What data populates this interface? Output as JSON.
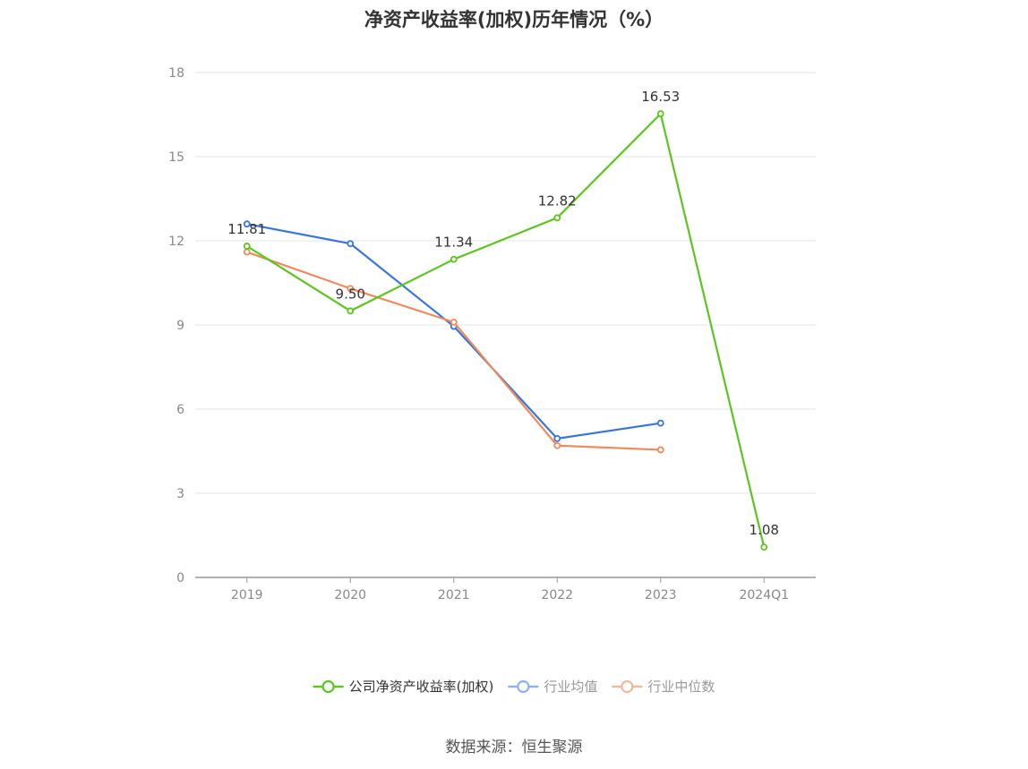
{
  "chart_data": {
    "type": "line",
    "title": "净资产收益率(加权)历年情况（%）",
    "categories": [
      "2019",
      "2020",
      "2021",
      "2022",
      "2023",
      "2024Q1"
    ],
    "ylim": [
      0,
      18
    ],
    "yticks": [
      0,
      3,
      6,
      9,
      12,
      15,
      18
    ],
    "grid": true,
    "legend_position": "bottom",
    "series": [
      {
        "name": "公司净资产收益率(加权)",
        "color": "#5cc520",
        "values": [
          11.81,
          9.5,
          11.34,
          12.82,
          16.53,
          1.08
        ],
        "labels": [
          "11.81",
          "9.50",
          "11.34",
          "12.82",
          "16.53",
          "1.08"
        ]
      },
      {
        "name": "行业均值",
        "color": "#3a75d9",
        "values": [
          12.6,
          11.9,
          8.95,
          4.95,
          5.5,
          null
        ]
      },
      {
        "name": "行业中位数",
        "color": "#f08a5d",
        "values": [
          11.6,
          10.3,
          9.1,
          4.7,
          4.55,
          null
        ]
      }
    ]
  },
  "source": "数据来源：恒生聚源"
}
